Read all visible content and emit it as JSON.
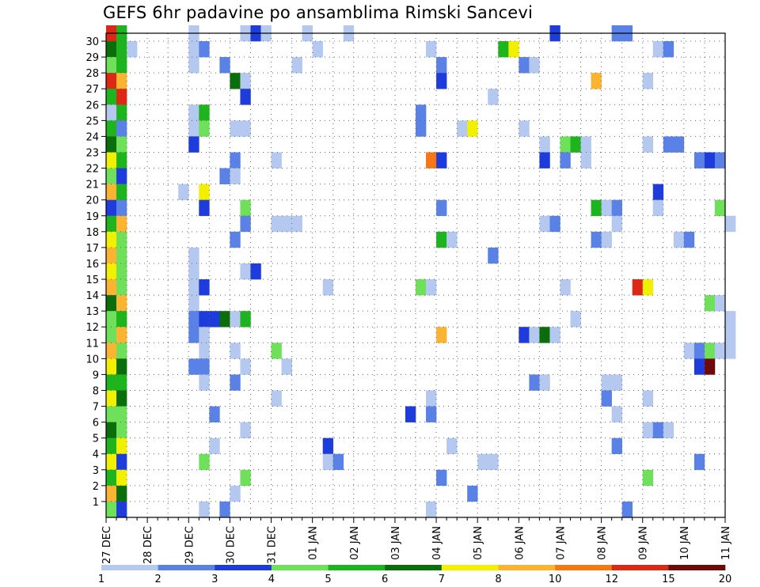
{
  "chart_data": {
    "type": "heatmap",
    "title": "GEFS 6hr padavine po ansamblima Rimski Sancevi",
    "x_tick_labels": [
      "27 DEC",
      "28 DEC",
      "29 DEC",
      "30 DEC",
      "31 DEC",
      "01 JAN",
      "02 JAN",
      "03 JAN",
      "04 JAN",
      "05 JAN",
      "06 JAN",
      "07 JAN",
      "08 JAN",
      "09 JAN",
      "10 JAN",
      "11 JAN"
    ],
    "y_tick_labels": [
      "1",
      "2",
      "3",
      "4",
      "5",
      "6",
      "7",
      "8",
      "9",
      "10",
      "11",
      "12",
      "13",
      "14",
      "15",
      "16",
      "17",
      "18",
      "19",
      "20",
      "21",
      "22",
      "23",
      "24",
      "25",
      "26",
      "27",
      "28",
      "29",
      "30"
    ],
    "time_step_hours": 6,
    "grid": "dotted",
    "colorbar": {
      "labels": [
        "1",
        "2",
        "3",
        "4",
        "5",
        "6",
        "7",
        "8",
        "10",
        "12",
        "15",
        "20"
      ],
      "colors": [
        "#b4c8f0",
        "#5a82e6",
        "#1e3cdc",
        "#6ee05a",
        "#1eb41e",
        "#0a6e0a",
        "#f0f000",
        "#fab432",
        "#f57814",
        "#dc2814",
        "#6e0a0a"
      ]
    },
    "color_levels": {
      "1": "#b4c8f0",
      "2": "#5a82e6",
      "3": "#1e3cdc",
      "4": "#6ee05a",
      "5": "#1eb41e",
      "6": "#0a6e0a",
      "7": "#f0f000",
      "8": "#fab432",
      "10": "#f57814",
      "12": "#dc2814",
      "15": "#6e0a0a"
    },
    "cells_note": "Each cell: [time_step_index, member, level]; time_step_index counted in 6-hour steps from 27 DEC 00Z; level = lower bound of the colorbar bin (mm).",
    "cells": [
      [
        0,
        30,
        12
      ],
      [
        1,
        30,
        5
      ],
      [
        0,
        29,
        6
      ],
      [
        1,
        29,
        5
      ],
      [
        2,
        29,
        1
      ],
      [
        0,
        28,
        4
      ],
      [
        1,
        28,
        5
      ],
      [
        0,
        27,
        12
      ],
      [
        1,
        27,
        8
      ],
      [
        0,
        26,
        5
      ],
      [
        1,
        26,
        12
      ],
      [
        0,
        25,
        1
      ],
      [
        1,
        25,
        5
      ],
      [
        0,
        24,
        5
      ],
      [
        1,
        24,
        2
      ],
      [
        0,
        23,
        6
      ],
      [
        1,
        23,
        4
      ],
      [
        0,
        22,
        7
      ],
      [
        1,
        22,
        5
      ],
      [
        0,
        21,
        4
      ],
      [
        1,
        21,
        3
      ],
      [
        0,
        20,
        8
      ],
      [
        1,
        20,
        5
      ],
      [
        0,
        19,
        3
      ],
      [
        1,
        19,
        2
      ],
      [
        0,
        18,
        5
      ],
      [
        1,
        18,
        8
      ],
      [
        0,
        17,
        7
      ],
      [
        1,
        17,
        4
      ],
      [
        0,
        16,
        8
      ],
      [
        1,
        16,
        4
      ],
      [
        0,
        15,
        7
      ],
      [
        1,
        15,
        4
      ],
      [
        0,
        14,
        8
      ],
      [
        1,
        14,
        4
      ],
      [
        0,
        13,
        6
      ],
      [
        1,
        13,
        8
      ],
      [
        0,
        12,
        4
      ],
      [
        1,
        12,
        5
      ],
      [
        0,
        11,
        4
      ],
      [
        1,
        11,
        8
      ],
      [
        0,
        10,
        8
      ],
      [
        1,
        10,
        4
      ],
      [
        0,
        9,
        7
      ],
      [
        1,
        9,
        6
      ],
      [
        0,
        8,
        5
      ],
      [
        1,
        8,
        5
      ],
      [
        0,
        7,
        7
      ],
      [
        1,
        7,
        6
      ],
      [
        0,
        6,
        4
      ],
      [
        1,
        6,
        4
      ],
      [
        0,
        5,
        6
      ],
      [
        1,
        5,
        4
      ],
      [
        0,
        4,
        5
      ],
      [
        1,
        4,
        7
      ],
      [
        0,
        3,
        7
      ],
      [
        1,
        3,
        3
      ],
      [
        0,
        2,
        5
      ],
      [
        1,
        2,
        7
      ],
      [
        0,
        1,
        8
      ],
      [
        1,
        1,
        6
      ],
      [
        0,
        0,
        4
      ],
      [
        1,
        0,
        3
      ],
      [
        8,
        30,
        1
      ],
      [
        13,
        30,
        1
      ],
      [
        14,
        30,
        3
      ],
      [
        15,
        30,
        1
      ],
      [
        19,
        30,
        1
      ],
      [
        23,
        30,
        1
      ],
      [
        43,
        30,
        3
      ],
      [
        49,
        30,
        2
      ],
      [
        50,
        30,
        2
      ],
      [
        8,
        29,
        1
      ],
      [
        9,
        29,
        2
      ],
      [
        20,
        29,
        1
      ],
      [
        31,
        29,
        1
      ],
      [
        38,
        29,
        5
      ],
      [
        39,
        29,
        7
      ],
      [
        53,
        29,
        1
      ],
      [
        54,
        29,
        2
      ],
      [
        8,
        28,
        1
      ],
      [
        11,
        28,
        2
      ],
      [
        18,
        28,
        1
      ],
      [
        32,
        28,
        2
      ],
      [
        40,
        28,
        2
      ],
      [
        41,
        28,
        1
      ],
      [
        12,
        27,
        6
      ],
      [
        13,
        27,
        1
      ],
      [
        32,
        27,
        3
      ],
      [
        47,
        27,
        8
      ],
      [
        52,
        27,
        1
      ],
      [
        13,
        26,
        3
      ],
      [
        37,
        26,
        1
      ],
      [
        8,
        25,
        1
      ],
      [
        9,
        25,
        5
      ],
      [
        30,
        25,
        2
      ],
      [
        8,
        24,
        1
      ],
      [
        9,
        24,
        4
      ],
      [
        12,
        24,
        1
      ],
      [
        13,
        24,
        1
      ],
      [
        30,
        24,
        2
      ],
      [
        34,
        24,
        1
      ],
      [
        35,
        24,
        7
      ],
      [
        40,
        24,
        1
      ],
      [
        8,
        23,
        3
      ],
      [
        42,
        23,
        1
      ],
      [
        44,
        23,
        4
      ],
      [
        45,
        23,
        5
      ],
      [
        46,
        23,
        1
      ],
      [
        52,
        23,
        1
      ],
      [
        54,
        23,
        2
      ],
      [
        55,
        23,
        2
      ],
      [
        12,
        22,
        2
      ],
      [
        16,
        22,
        1
      ],
      [
        31,
        22,
        10
      ],
      [
        32,
        22,
        3
      ],
      [
        42,
        22,
        3
      ],
      [
        44,
        22,
        2
      ],
      [
        46,
        22,
        1
      ],
      [
        57,
        22,
        2
      ],
      [
        58,
        22,
        3
      ],
      [
        59,
        22,
        2
      ],
      [
        11,
        21,
        2
      ],
      [
        12,
        21,
        1
      ],
      [
        7,
        20,
        1
      ],
      [
        9,
        20,
        7
      ],
      [
        53,
        20,
        3
      ],
      [
        9,
        19,
        3
      ],
      [
        13,
        19,
        4
      ],
      [
        32,
        19,
        2
      ],
      [
        47,
        19,
        5
      ],
      [
        48,
        19,
        1
      ],
      [
        49,
        19,
        2
      ],
      [
        53,
        19,
        1
      ],
      [
        59,
        19,
        4
      ],
      [
        13,
        18,
        2
      ],
      [
        16,
        18,
        1
      ],
      [
        17,
        18,
        1
      ],
      [
        18,
        18,
        1
      ],
      [
        42,
        18,
        1
      ],
      [
        43,
        18,
        2
      ],
      [
        49,
        18,
        1
      ],
      [
        60,
        18,
        1
      ],
      [
        12,
        17,
        2
      ],
      [
        32,
        17,
        5
      ],
      [
        33,
        17,
        1
      ],
      [
        47,
        17,
        2
      ],
      [
        48,
        17,
        1
      ],
      [
        55,
        17,
        1
      ],
      [
        56,
        17,
        2
      ],
      [
        8,
        16,
        1
      ],
      [
        37,
        16,
        2
      ],
      [
        8,
        15,
        1
      ],
      [
        13,
        15,
        1
      ],
      [
        14,
        15,
        3
      ],
      [
        8,
        14,
        1
      ],
      [
        9,
        14,
        3
      ],
      [
        21,
        14,
        1
      ],
      [
        30,
        14,
        4
      ],
      [
        31,
        14,
        1
      ],
      [
        44,
        14,
        1
      ],
      [
        51,
        14,
        12
      ],
      [
        52,
        14,
        7
      ],
      [
        8,
        13,
        1
      ],
      [
        58,
        13,
        4
      ],
      [
        59,
        13,
        1
      ],
      [
        8,
        12,
        2
      ],
      [
        9,
        12,
        3
      ],
      [
        10,
        12,
        3
      ],
      [
        11,
        12,
        6
      ],
      [
        12,
        12,
        1
      ],
      [
        13,
        12,
        5
      ],
      [
        45,
        12,
        1
      ],
      [
        60,
        12,
        1
      ],
      [
        8,
        11,
        2
      ],
      [
        9,
        11,
        1
      ],
      [
        32,
        11,
        8
      ],
      [
        40,
        11,
        3
      ],
      [
        41,
        11,
        1
      ],
      [
        42,
        11,
        6
      ],
      [
        43,
        11,
        1
      ],
      [
        60,
        11,
        1
      ],
      [
        9,
        10,
        1
      ],
      [
        12,
        10,
        1
      ],
      [
        16,
        10,
        4
      ],
      [
        56,
        10,
        1
      ],
      [
        57,
        10,
        2
      ],
      [
        58,
        10,
        4
      ],
      [
        59,
        10,
        1
      ],
      [
        60,
        10,
        1
      ],
      [
        8,
        9,
        2
      ],
      [
        9,
        9,
        2
      ],
      [
        13,
        9,
        1
      ],
      [
        17,
        9,
        1
      ],
      [
        57,
        9,
        3
      ],
      [
        58,
        9,
        15
      ],
      [
        9,
        8,
        1
      ],
      [
        12,
        8,
        2
      ],
      [
        41,
        8,
        2
      ],
      [
        42,
        8,
        1
      ],
      [
        48,
        8,
        1
      ],
      [
        49,
        8,
        1
      ],
      [
        16,
        7,
        1
      ],
      [
        31,
        7,
        1
      ],
      [
        48,
        7,
        2
      ],
      [
        52,
        7,
        1
      ],
      [
        10,
        6,
        2
      ],
      [
        29,
        6,
        3
      ],
      [
        31,
        6,
        2
      ],
      [
        49,
        6,
        1
      ],
      [
        13,
        5,
        1
      ],
      [
        52,
        5,
        1
      ],
      [
        53,
        5,
        2
      ],
      [
        54,
        5,
        1
      ],
      [
        10,
        4,
        1
      ],
      [
        21,
        4,
        3
      ],
      [
        33,
        4,
        1
      ],
      [
        49,
        4,
        2
      ],
      [
        9,
        3,
        4
      ],
      [
        21,
        3,
        1
      ],
      [
        22,
        3,
        2
      ],
      [
        36,
        3,
        1
      ],
      [
        37,
        3,
        1
      ],
      [
        57,
        3,
        2
      ],
      [
        13,
        2,
        4
      ],
      [
        32,
        2,
        2
      ],
      [
        52,
        2,
        4
      ],
      [
        12,
        1,
        1
      ],
      [
        35,
        1,
        2
      ],
      [
        9,
        0,
        1
      ],
      [
        11,
        0,
        2
      ],
      [
        31,
        0,
        1
      ],
      [
        50,
        0,
        2
      ]
    ]
  }
}
